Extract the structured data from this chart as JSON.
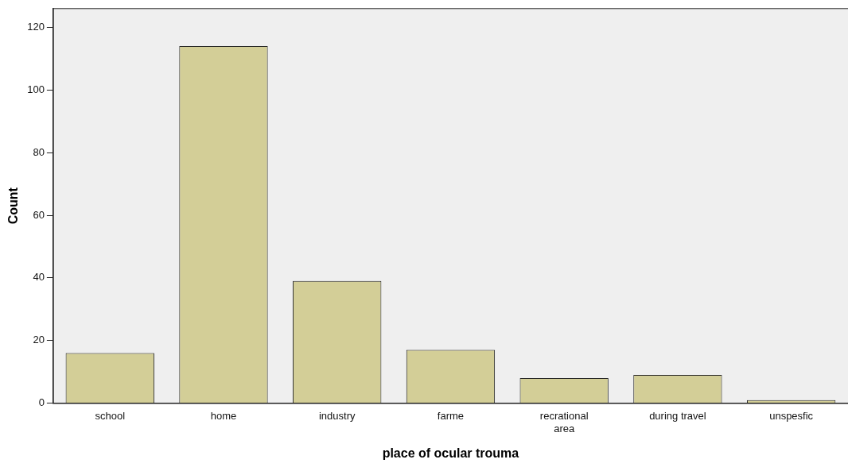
{
  "chart_data": {
    "type": "bar",
    "xlabel": "place of ocular trouma",
    "ylabel": "Count",
    "categories": [
      "school",
      "home",
      "industry",
      "farme",
      "recrational area",
      "during travel",
      "unspesfic"
    ],
    "values": [
      16,
      114,
      39,
      17,
      8,
      9,
      1
    ],
    "color": "#d3ce97",
    "ylim": [
      0,
      126
    ],
    "yticks": [
      0,
      20,
      40,
      60,
      80,
      100,
      120
    ],
    "grid": false,
    "legend": false
  }
}
